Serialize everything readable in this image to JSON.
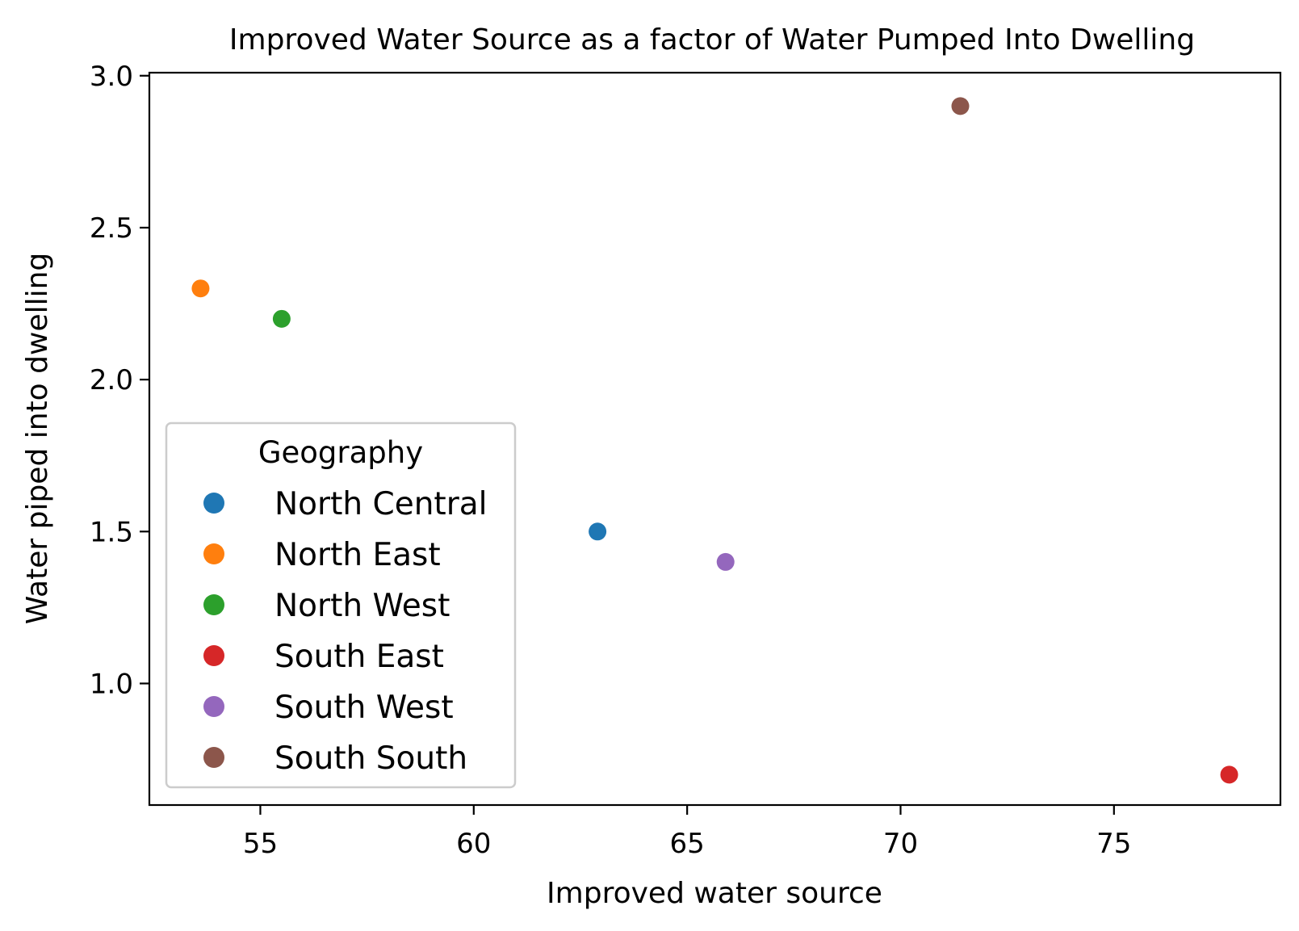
{
  "chart_data": {
    "type": "scatter",
    "title": "Improved Water Source as a factor of Water Pumped Into Dwelling",
    "xlabel": "Improved water source",
    "ylabel": "Water piped into dwelling",
    "xlim": [
      52.4,
      78.9
    ],
    "ylim": [
      0.6,
      3.01
    ],
    "xticks": [
      55,
      60,
      65,
      70,
      75
    ],
    "yticks": [
      1.0,
      1.5,
      2.0,
      2.5,
      3.0
    ],
    "xtick_labels": [
      "55",
      "60",
      "65",
      "70",
      "75"
    ],
    "ytick_labels": [
      "1.0",
      "1.5",
      "2.0",
      "2.5",
      "3.0"
    ],
    "grid": false,
    "legend": {
      "title": "Geography",
      "placement": "lower-left"
    },
    "series": [
      {
        "name": "North Central",
        "color": "#1f77b4",
        "x": [
          62.9
        ],
        "y": [
          1.5
        ]
      },
      {
        "name": "North East",
        "color": "#ff7f0e",
        "x": [
          53.6
        ],
        "y": [
          2.3
        ]
      },
      {
        "name": "North West",
        "color": "#2ca02c",
        "x": [
          55.5
        ],
        "y": [
          2.2
        ]
      },
      {
        "name": "South East",
        "color": "#d62728",
        "x": [
          77.7
        ],
        "y": [
          0.7
        ]
      },
      {
        "name": "South West",
        "color": "#9467bd",
        "x": [
          65.9
        ],
        "y": [
          1.4
        ]
      },
      {
        "name": "South South",
        "color": "#8c564b",
        "x": [
          71.4
        ],
        "y": [
          2.9
        ]
      }
    ]
  }
}
